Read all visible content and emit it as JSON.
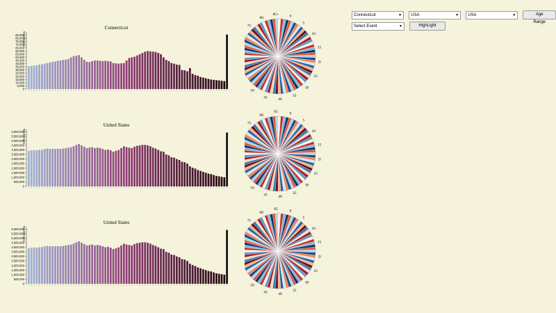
{
  "controls": {
    "state_select": "Connecticut",
    "country_select_1": "USA",
    "country_select_2": "USA",
    "age_range_button": "Age Range",
    "event_select": "Select Event",
    "highlight_button": "HighLight",
    "dropdown_arrow": "▼"
  },
  "colors": {
    "background": "#f5f3dc",
    "bar_start": "#9fb1d6",
    "bar_mid": "#8e3a73",
    "bar_end": "#24060f",
    "pie_scheme": [
      "#fdf6e0",
      "#fddbc0",
      "#f8b18a",
      "#f08357",
      "#de5a3c",
      "#c53030",
      "#a51b24",
      "#6e0f18",
      "#d7e7f1",
      "#b2d2e8",
      "#86b8da",
      "#5b9bc9",
      "#3a7fb6",
      "#2364a0",
      "#154b87",
      "#0b336a"
    ]
  },
  "chart_data": [
    {
      "type": "bar",
      "title": "Connecticut",
      "ylabel": "POPULATION",
      "ylim": [
        0,
        90000
      ],
      "yticks": [
        0,
        5000,
        10000,
        15000,
        20000,
        25000,
        30000,
        35000,
        40000,
        45000,
        50000,
        55000,
        60000,
        65000,
        70000,
        75000,
        80000,
        85000
      ],
      "ytick_labels": [
        "0",
        "5,000",
        "10,000",
        "15,000",
        "20,000",
        "25,000",
        "30,000",
        "35,000",
        "40,000",
        "45,000",
        "50,000",
        "55,000",
        "60,000",
        "65,000",
        "70,000",
        "75,000",
        "80,000",
        "85,000"
      ],
      "values": [
        36000,
        36500,
        37000,
        37500,
        38500,
        39000,
        40000,
        41000,
        42000,
        43000,
        43500,
        44500,
        45000,
        46000,
        46500,
        47500,
        50000,
        52000,
        52500,
        53500,
        50000,
        46000,
        43000,
        42500,
        44000,
        45000,
        45000,
        44500,
        44000,
        44500,
        44000,
        43500,
        41000,
        40500,
        40000,
        40500,
        41000,
        45000,
        49000,
        50000,
        51000,
        53000,
        55000,
        57000,
        59000,
        60000,
        59500,
        59000,
        58500,
        57000,
        55000,
        50000,
        46000,
        44000,
        41000,
        40000,
        38500,
        38000,
        30000,
        29500,
        28000,
        33000,
        24000,
        22000,
        21000,
        19000,
        18000,
        17000,
        16000,
        15000,
        14500,
        14000,
        13500,
        13000,
        12500,
        86000
      ]
    },
    {
      "type": "bar",
      "title": "United States",
      "ylabel": "POPULATION",
      "ylim": [
        0,
        6250000
      ],
      "yticks": [
        0,
        500000,
        1000000,
        1500000,
        2000000,
        2500000,
        3000000,
        3500000,
        4000000,
        4500000,
        5000000,
        5500000,
        6000000
      ],
      "ytick_labels": [
        "0",
        "500,000",
        "1,000,000",
        "1,500,000",
        "2,000,000",
        "2,500,000",
        "3,000,000",
        "3,500,000",
        "4,000,000",
        "4,500,000",
        "5,000,000",
        "5,500,000",
        "6,000,000"
      ],
      "values": [
        3900000,
        3950000,
        3980000,
        3960000,
        4000000,
        4020000,
        4100000,
        4150000,
        4100000,
        4120000,
        4110000,
        4130000,
        4100000,
        4150000,
        4200000,
        4250000,
        4300000,
        4400000,
        4550000,
        4650000,
        4500000,
        4350000,
        4200000,
        4250000,
        4300000,
        4200000,
        4250000,
        4200000,
        4100000,
        4000000,
        4050000,
        3950000,
        3800000,
        3900000,
        4000000,
        4200000,
        4400000,
        4300000,
        4250000,
        4200000,
        4350000,
        4450000,
        4500000,
        4550000,
        4550000,
        4500000,
        4400000,
        4250000,
        4150000,
        4000000,
        3850000,
        3800000,
        3500000,
        3400000,
        3200000,
        3150000,
        3000000,
        2900000,
        2700000,
        2650000,
        2500000,
        2200000,
        2050000,
        1950000,
        1800000,
        1700000,
        1600000,
        1500000,
        1400000,
        1350000,
        1250000,
        1150000,
        1100000,
        1050000,
        1000000,
        5900000
      ]
    },
    {
      "type": "bar",
      "title": "United States",
      "ylabel": "POPULATION",
      "ylim": [
        0,
        6250000
      ],
      "yticks": [
        0,
        500000,
        1000000,
        1500000,
        2000000,
        2500000,
        3000000,
        3500000,
        4000000,
        4500000,
        5000000,
        5500000,
        6000000
      ],
      "ytick_labels": [
        "0",
        "500,000",
        "1,000,000",
        "1,500,000",
        "2,000,000",
        "2,500,000",
        "3,000,000",
        "3,500,000",
        "4,000,000",
        "4,500,000",
        "5,000,000",
        "5,500,000",
        "6,000,000"
      ],
      "values": [
        3900000,
        3950000,
        3980000,
        3960000,
        4000000,
        4020000,
        4100000,
        4150000,
        4100000,
        4120000,
        4110000,
        4130000,
        4100000,
        4150000,
        4200000,
        4250000,
        4300000,
        4400000,
        4550000,
        4650000,
        4500000,
        4350000,
        4200000,
        4250000,
        4300000,
        4200000,
        4250000,
        4200000,
        4100000,
        4000000,
        4050000,
        3950000,
        3800000,
        3900000,
        4000000,
        4200000,
        4400000,
        4300000,
        4250000,
        4200000,
        4350000,
        4450000,
        4500000,
        4550000,
        4550000,
        4500000,
        4400000,
        4250000,
        4150000,
        4000000,
        3850000,
        3800000,
        3500000,
        3400000,
        3200000,
        3150000,
        3000000,
        2900000,
        2700000,
        2650000,
        2500000,
        2200000,
        2050000,
        1950000,
        1800000,
        1700000,
        1600000,
        1500000,
        1400000,
        1350000,
        1250000,
        1150000,
        1100000,
        1050000,
        1000000,
        5900000
      ]
    },
    {
      "type": "pie",
      "labels": [
        "85+",
        "0",
        "5",
        "10",
        "15",
        "20",
        "25",
        "30",
        "35",
        "40",
        "45",
        "50",
        "55",
        "60",
        "65",
        "70",
        "75",
        "80"
      ],
      "slices": 86
    },
    {
      "type": "pie",
      "labels": [
        "85",
        "0",
        "5",
        "10",
        "15",
        "20",
        "25",
        "30",
        "35",
        "40",
        "45",
        "50",
        "55",
        "60",
        "65",
        "70",
        "75",
        "80"
      ],
      "slices": 86
    },
    {
      "type": "pie",
      "labels": [
        "85",
        "0",
        "5",
        "10",
        "15",
        "20",
        "25",
        "30",
        "35",
        "40",
        "45",
        "50",
        "55",
        "60",
        "65",
        "70",
        "75",
        "80"
      ],
      "slices": 86
    }
  ]
}
